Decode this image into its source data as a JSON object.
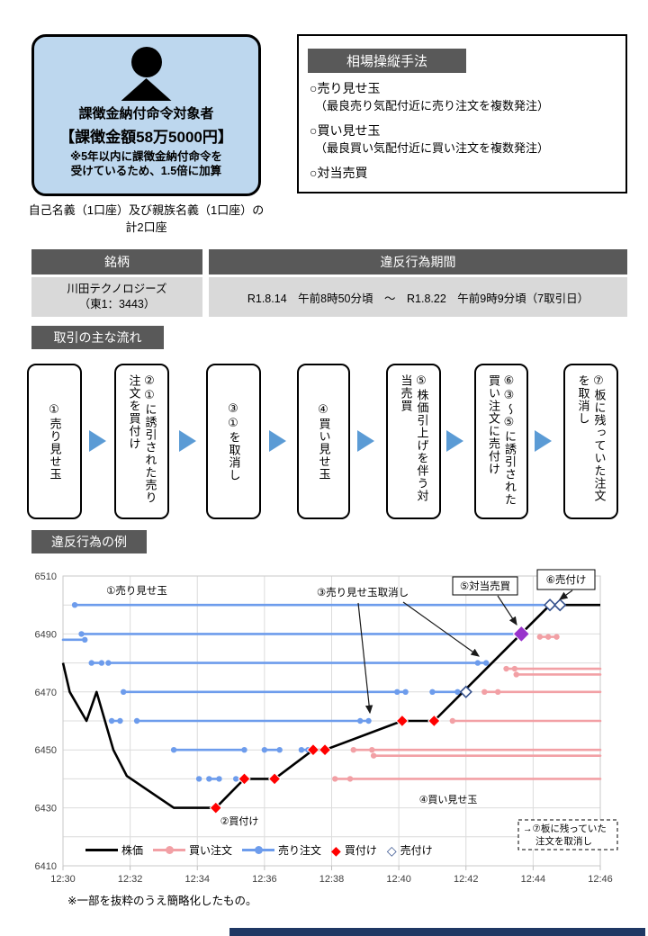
{
  "card": {
    "title": "課徴金納付命令対象者",
    "amount": "【課徴金額58万5000円】",
    "note_line1": "※5年以内に課徴金納付命令を",
    "note_line2": "受けているため、1.5倍に加算",
    "caption_line1": "自己名義（1口座）及び親族名義（1口座）の",
    "caption_line2": "計2口座",
    "bg_color": "#BDD7EE"
  },
  "method_box": {
    "heading": "相場操縦手法",
    "items": [
      {
        "title": "○売り見せ玉",
        "detail": "（最良売り気配付近に売り注文を複数発注）"
      },
      {
        "title": "○買い見せ玉",
        "detail": "（最良買い気配付近に買い注文を複数発注）"
      },
      {
        "title": "○対当売買",
        "detail": ""
      }
    ]
  },
  "table": {
    "col1_header": "銘柄",
    "col2_header": "違反行為期間",
    "col1_line1": "川田テクノロジーズ",
    "col1_line2": "（東1：3443）",
    "col2_value": "R1.8.14　午前8時50分頃　～　R1.8.22　午前9時9分頃（7取引日）"
  },
  "flow": {
    "heading": "取引の主な流れ",
    "steps": [
      "①売り見せ玉",
      "②①に誘引された売り注文を買付け",
      "③①を取消し",
      "④買い見せ玉",
      "⑤株価引上げを伴う対当売買",
      "⑥③～⑤に誘引された買い注文に売付け",
      "⑦板に残っていた注文を取消し"
    ]
  },
  "example_heading": "違反行為の例",
  "chart_data": {
    "type": "line",
    "x_axis": {
      "tick_labels": [
        "12:30",
        "12:32",
        "12:34",
        "12:36",
        "12:38",
        "12:40",
        "12:42",
        "12:44",
        "12:46"
      ],
      "minutes_range": [
        0,
        16
      ]
    },
    "y_axis": {
      "range": [
        6410,
        6510
      ],
      "tick_labels": [
        6510,
        6490,
        6470,
        6450,
        6430,
        6410
      ],
      "grid_step": 10
    },
    "price": {
      "name": "株価",
      "color": "#000000",
      "points": [
        [
          0,
          6480
        ],
        [
          0.2,
          6470
        ],
        [
          0.7,
          6460
        ],
        [
          1,
          6470
        ],
        [
          1.5,
          6450
        ],
        [
          1.9,
          6441
        ],
        [
          3.3,
          6430
        ],
        [
          4.55,
          6430
        ],
        [
          5.4,
          6440
        ],
        [
          6.3,
          6440
        ],
        [
          7.45,
          6450
        ],
        [
          7.8,
          6450
        ],
        [
          10.1,
          6460
        ],
        [
          11.05,
          6460
        ],
        [
          14.5,
          6500
        ],
        [
          16,
          6500
        ]
      ]
    },
    "sell_orders": {
      "name": "売り注文",
      "color": "#6D9CEC",
      "segments": [
        {
          "price": 6500,
          "from": 0.35,
          "to": 14.3,
          "dots": [
            0.35
          ]
        },
        {
          "price": 6490,
          "from": 0.55,
          "to": 13.5,
          "dots": [
            0.55
          ]
        },
        {
          "price": 6488,
          "from": 0,
          "to": 0.65,
          "dots": [
            0.65
          ]
        },
        {
          "price": 6480,
          "from": 0.85,
          "to": 1.15,
          "dots": [
            0.85,
            1.15
          ]
        },
        {
          "price": 6480,
          "from": 1.35,
          "to": 12.6,
          "dots": [
            1.35,
            12.35,
            12.6
          ]
        },
        {
          "price": 6470,
          "from": 1.8,
          "to": 10.2,
          "dots": [
            1.8,
            9.95,
            10.2
          ]
        },
        {
          "price": 6470,
          "from": 11,
          "to": 11.75,
          "dots": [
            11,
            11.75
          ]
        },
        {
          "price": 6460,
          "from": 1.45,
          "to": 1.7,
          "dots": [
            1.45,
            1.7
          ]
        },
        {
          "price": 6460,
          "from": 2.2,
          "to": 9.1,
          "dots": [
            2.2,
            8.85,
            9.1
          ]
        },
        {
          "price": 6450,
          "from": 3.3,
          "to": 5.4,
          "dots": [
            3.3,
            5.4
          ]
        },
        {
          "price": 6450,
          "from": 6,
          "to": 6.45,
          "dots": [
            6,
            6.45
          ]
        },
        {
          "price": 6450,
          "from": 7.1,
          "to": 7.3,
          "dots": [
            7.1,
            7.3
          ]
        },
        {
          "price": 6440,
          "from": 4,
          "to": 4.1,
          "dots": [
            4.05
          ]
        },
        {
          "price": 6440,
          "from": 4.35,
          "to": 4.65,
          "dots": [
            4.35,
            4.65
          ]
        },
        {
          "price": 6440,
          "from": 5.15,
          "to": 5.35,
          "dots": [
            5.15,
            5.35
          ]
        }
      ]
    },
    "buy_orders": {
      "name": "買い注文",
      "color": "#F2A0A5",
      "segments": [
        {
          "price": 6489,
          "from": 14.2,
          "to": 14.7,
          "dots": [
            14.2,
            14.45,
            14.7
          ]
        },
        {
          "price": 6478,
          "from": 13.2,
          "to": 16,
          "dots": [
            13.2,
            13.45
          ]
        },
        {
          "price": 6476,
          "from": 13.5,
          "to": 16,
          "dots": [
            13.5
          ]
        },
        {
          "price": 6470,
          "from": 12.55,
          "to": 16,
          "dots": [
            12.55,
            12.95
          ]
        },
        {
          "price": 6460,
          "from": 11.6,
          "to": 16,
          "dots": [
            11.6
          ]
        },
        {
          "price": 6450,
          "from": 8.65,
          "to": 16,
          "dots": [
            8.65,
            9.2
          ]
        },
        {
          "price": 6448,
          "from": 9.25,
          "to": 16,
          "dots": [
            9.25
          ]
        },
        {
          "price": 6440,
          "from": 8.1,
          "to": 16,
          "dots": [
            8.1,
            8.55
          ]
        }
      ]
    },
    "buy_executions": {
      "name": "買付け",
      "color": "#FF0000",
      "points": [
        [
          4.55,
          6430
        ],
        [
          5.4,
          6440
        ],
        [
          6.3,
          6440
        ],
        [
          7.45,
          6450
        ],
        [
          7.8,
          6450
        ],
        [
          10.1,
          6460
        ],
        [
          11.05,
          6460
        ]
      ]
    },
    "sell_executions": {
      "name": "売付け",
      "fill": "#FFFFFF",
      "stroke": "#34508C",
      "points": [
        [
          12,
          6470
        ],
        [
          14.5,
          6500
        ],
        [
          14.8,
          6500
        ]
      ]
    },
    "cross_trade": {
      "name": "対当売買",
      "color": "#9933CC",
      "points": [
        [
          13.65,
          6490
        ]
      ]
    },
    "annotations": {
      "label1": "①売り見せ玉",
      "label2": "②買付け",
      "label3": "③売り見せ玉取消し",
      "label4": "④買い見せ玉",
      "label5": "⑤対当売買",
      "label6": "⑥売付け",
      "label7_line1": "→⑦板に残っていた",
      "label7_line2": "注文を取消し"
    },
    "legend": [
      {
        "swatch": "line",
        "color": "#000000",
        "label": "株価"
      },
      {
        "swatch": "line-dot",
        "color": "#F2A0A5",
        "label": "買い注文"
      },
      {
        "swatch": "line-dot",
        "color": "#6D9CEC",
        "label": "売り注文"
      },
      {
        "swatch": "diamond-filled",
        "color": "#FF0000",
        "label": "買付け"
      },
      {
        "swatch": "diamond-outline",
        "color": "#34508C",
        "label": "売付け"
      }
    ],
    "note": "※一部を抜粋のうえ簡略化したもの。"
  }
}
